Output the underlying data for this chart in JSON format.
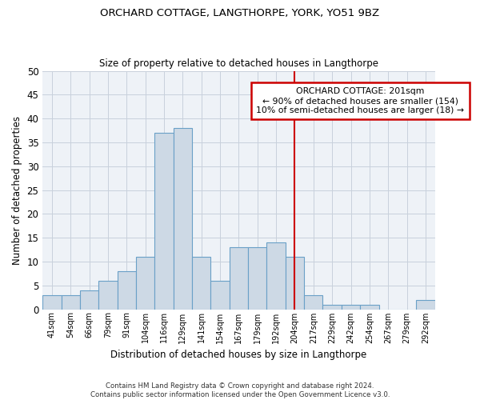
{
  "title": "ORCHARD COTTAGE, LANGTHORPE, YORK, YO51 9BZ",
  "subtitle": "Size of property relative to detached houses in Langthorpe",
  "xlabel": "Distribution of detached houses by size in Langthorpe",
  "ylabel": "Number of detached properties",
  "bar_labels": [
    "41sqm",
    "54sqm",
    "66sqm",
    "79sqm",
    "91sqm",
    "104sqm",
    "116sqm",
    "129sqm",
    "141sqm",
    "154sqm",
    "167sqm",
    "179sqm",
    "192sqm",
    "204sqm",
    "217sqm",
    "229sqm",
    "242sqm",
    "254sqm",
    "267sqm",
    "279sqm",
    "292sqm"
  ],
  "bar_values": [
    3,
    3,
    4,
    6,
    8,
    11,
    37,
    38,
    11,
    6,
    13,
    13,
    14,
    11,
    3,
    1,
    1,
    1,
    0,
    0,
    2
  ],
  "bar_color": "#cdd9e5",
  "bar_edge_color": "#6aa0c7",
  "ylim": [
    0,
    50
  ],
  "yticks": [
    0,
    5,
    10,
    15,
    20,
    25,
    30,
    35,
    40,
    45,
    50
  ],
  "vline_index": 13,
  "vline_color": "#cc0000",
  "annotation_title": "ORCHARD COTTAGE: 201sqm",
  "annotation_line1": "← 90% of detached houses are smaller (154)",
  "annotation_line2": "10% of semi-detached houses are larger (18) →",
  "annotation_box_color": "#ffffff",
  "annotation_box_edge": "#cc0000",
  "footer1": "Contains HM Land Registry data © Crown copyright and database right 2024.",
  "footer2": "Contains public sector information licensed under the Open Government Licence v3.0.",
  "background_color": "#ffffff",
  "plot_bg_color": "#eef2f7",
  "grid_color": "#c8d0dc"
}
